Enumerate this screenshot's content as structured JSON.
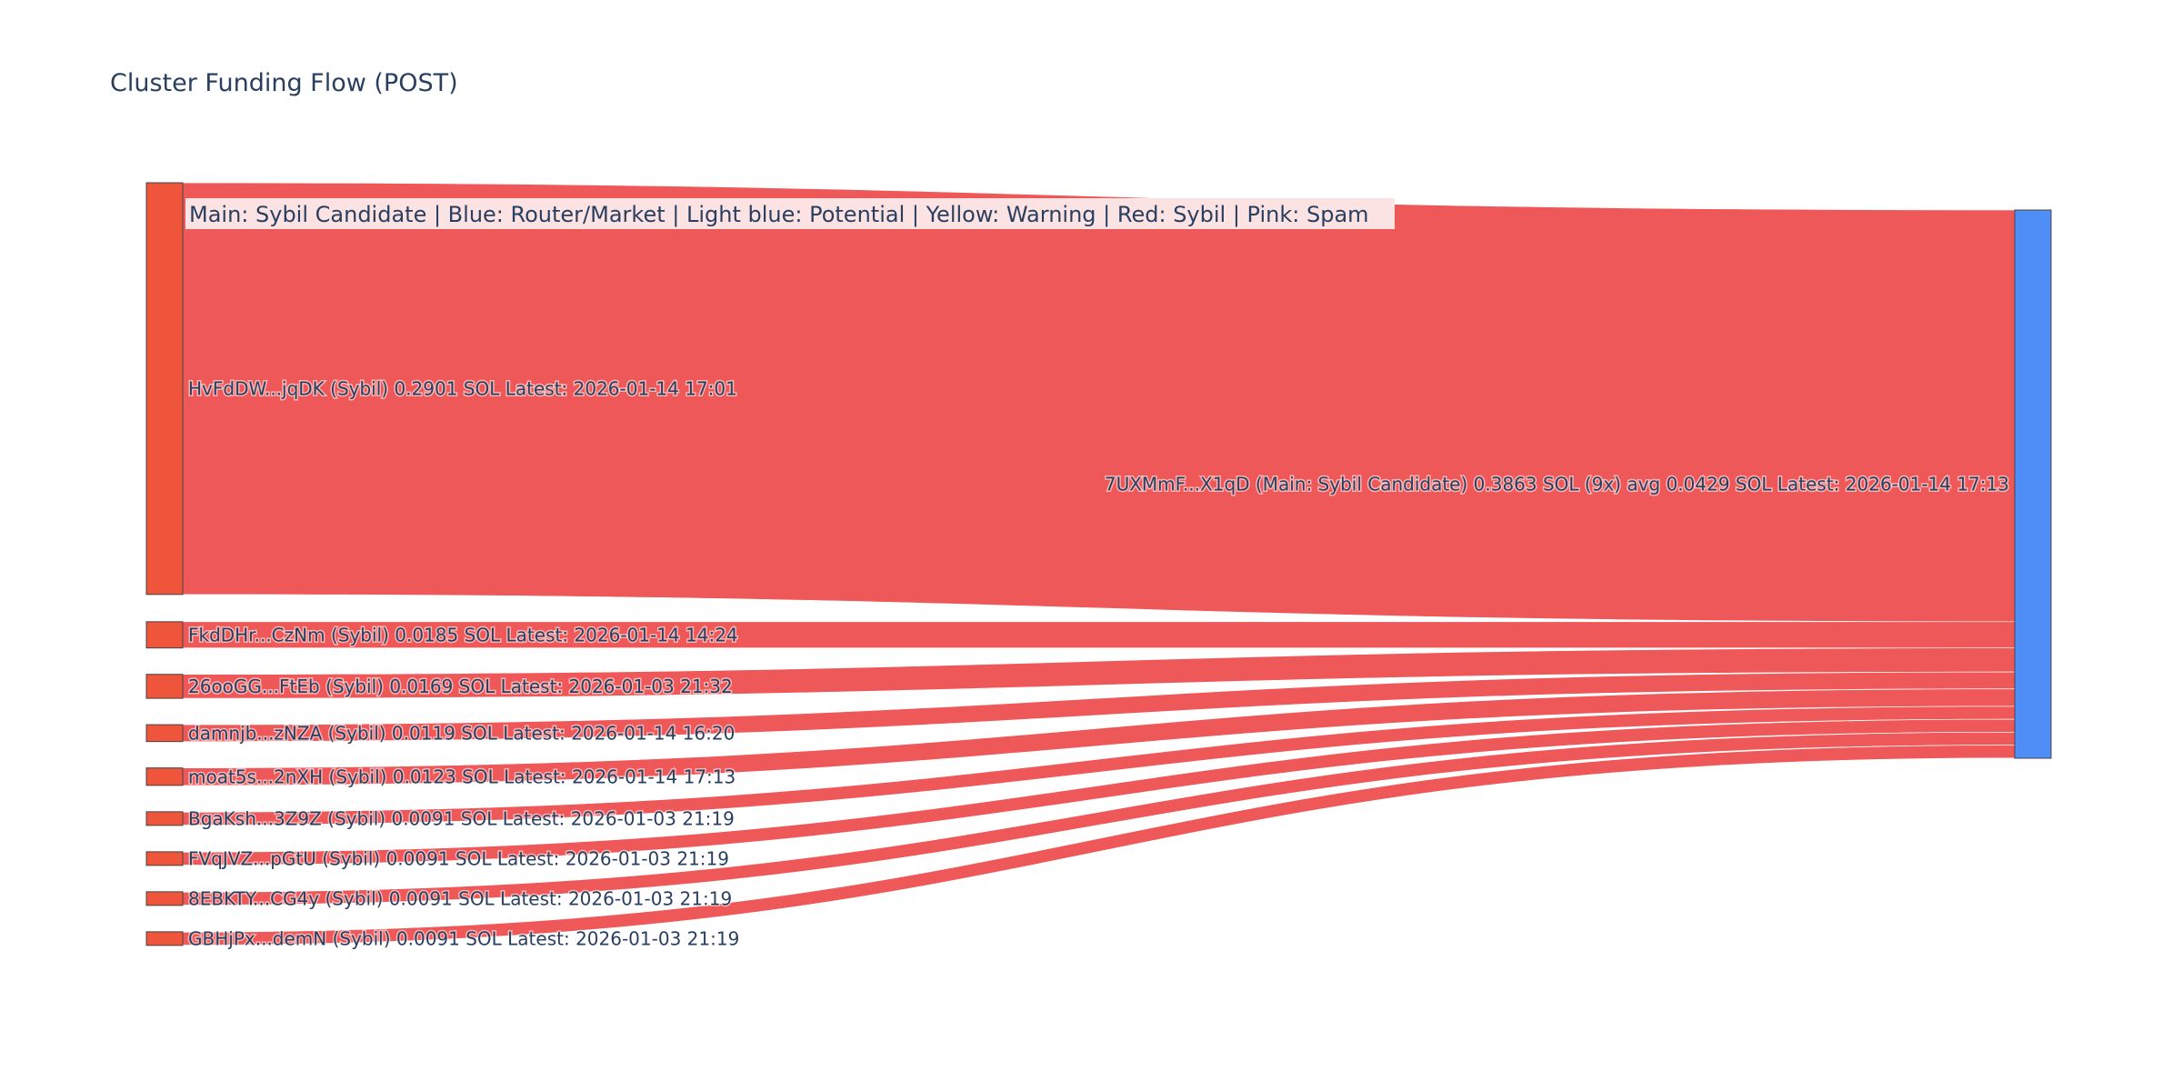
{
  "chart_data": {
    "type": "sankey",
    "title": "Cluster Funding Flow (POST)",
    "annotation": "Main: Sybil Candidate  |  Blue: Router/Market | Light blue: Potential | Yellow: Warning | Red: Sybil | Pink: Spam",
    "colors": {
      "sybil": "#ef553b",
      "main": "#4f8ef7",
      "link": "#ef5555",
      "legend_bg": "#fbe3e3"
    },
    "target": {
      "label": "7UXMmF...X1qD (Main: Sybil Candidate) 0.3863 SOL (9x) avg 0.0429 SOL Latest: 2026-01-14 17:13",
      "value": 0.3863
    },
    "sources": [
      {
        "label": "HvFdDW...jqDK (Sybil) 0.2901 SOL Latest: 2026-01-14 17:01",
        "value": 0.2901
      },
      {
        "label": "FkdDHr...CzNm (Sybil) 0.0185 SOL Latest: 2026-01-14 14:24",
        "value": 0.0185
      },
      {
        "label": "26ooGG...FtEb (Sybil) 0.0169 SOL Latest: 2026-01-03 21:32",
        "value": 0.0169
      },
      {
        "label": "damnjb...zNZA (Sybil) 0.0119 SOL Latest: 2026-01-14 16:20",
        "value": 0.0119
      },
      {
        "label": "moat5s...2nXH (Sybil) 0.0123 SOL Latest: 2026-01-14 17:13",
        "value": 0.0123
      },
      {
        "label": "BgaKsh...3Z9Z (Sybil) 0.0091 SOL Latest: 2026-01-03 21:19",
        "value": 0.0091
      },
      {
        "label": "FVqJVZ...pGtU (Sybil) 0.0091 SOL Latest: 2026-01-03 21:19",
        "value": 0.0091
      },
      {
        "label": "8EBKTY...CG4y (Sybil) 0.0091 SOL Latest: 2026-01-03 21:19",
        "value": 0.0091
      },
      {
        "label": "GBHjPx...demN (Sybil) 0.0091 SOL Latest: 2026-01-03 21:19",
        "value": 0.0091
      }
    ]
  }
}
